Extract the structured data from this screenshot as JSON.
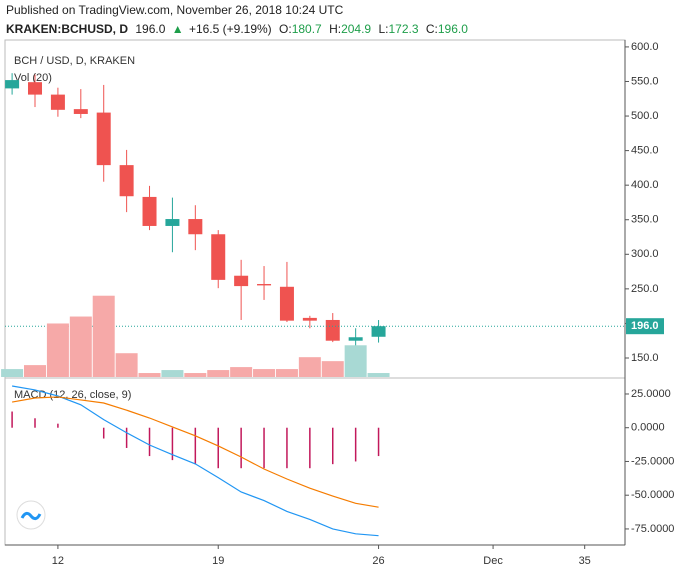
{
  "header": {
    "published": "Published on TradingView.com, November 26, 2018 10:24 UTC",
    "symbol": "KRAKEN:BCHUSD, D",
    "price": "196.0",
    "arrow": "▲",
    "change": "+16.5 (+9.19%)",
    "o_label": "O:",
    "o": "180.7",
    "h_label": "H:",
    "h": "204.9",
    "l_label": "L:",
    "l": "172.3",
    "c_label": "C:",
    "c": "196.0"
  },
  "chart_data": [
    {
      "type": "candlestick",
      "title": "BCH / USD, D, KRAKEN",
      "x": [
        10,
        11,
        12,
        13,
        14,
        15,
        16,
        17,
        18,
        19,
        20,
        21,
        22,
        23,
        24,
        25,
        26
      ],
      "open": [
        540,
        549,
        531,
        510,
        505,
        429,
        383,
        341,
        351,
        329,
        269,
        257,
        253,
        208,
        205,
        175,
        180.7
      ],
      "high": [
        562,
        560,
        541,
        539,
        545,
        451,
        399,
        382,
        371,
        335,
        292,
        283,
        289,
        211,
        215,
        193,
        204.9
      ],
      "low": [
        531,
        513,
        499,
        497,
        405,
        361,
        335,
        303,
        306,
        251,
        205,
        234,
        202,
        193,
        173,
        150,
        172.3
      ],
      "close": [
        552,
        531,
        509,
        503,
        429,
        384,
        341,
        351,
        329,
        263,
        254,
        255,
        204,
        204,
        175,
        180,
        196.0
      ],
      "up_color": "#26a69a",
      "down_color": "#ef5350",
      "ylim": [
        122.5,
        610
      ],
      "yticks": [
        {
          "value": 150,
          "label": "150.0"
        },
        {
          "value": 200,
          "label": "200.0"
        },
        {
          "value": 250,
          "label": "250.0"
        },
        {
          "value": 300,
          "label": "300.0"
        },
        {
          "value": 350,
          "label": "350.0"
        },
        {
          "value": 400,
          "label": "400.0"
        },
        {
          "value": 450,
          "label": "450.0"
        },
        {
          "value": 500,
          "label": "500.0"
        },
        {
          "value": 550,
          "label": "550.0"
        },
        {
          "value": 600,
          "label": "600.0"
        }
      ],
      "last_price": {
        "value": 196,
        "label": "196.0"
      },
      "xlim": [
        9.69,
        36.76
      ]
    },
    {
      "type": "volume",
      "title": "Vol (20)",
      "x": [
        10,
        11,
        12,
        13,
        14,
        15,
        16,
        17,
        18,
        19,
        20,
        21,
        22,
        23,
        24,
        25,
        26
      ],
      "values": [
        8,
        12,
        54,
        61,
        82,
        24,
        4,
        7,
        4,
        7,
        10,
        8,
        8,
        20,
        16,
        32,
        4
      ],
      "up_color": "#a8d9d4",
      "down_color": "#f6a9a8",
      "ylim": [
        0,
        340
      ],
      "xlim": [
        9.69,
        36.76
      ]
    },
    {
      "type": "macd",
      "title": "MACD (12, 26, close, 9)",
      "x": [
        10,
        11,
        12,
        13,
        14,
        15,
        16,
        17,
        18,
        19,
        20,
        21,
        22,
        23,
        24,
        25,
        26
      ],
      "series": [
        {
          "color": "#2196f3",
          "values": [
            30.9,
            28,
            23.5,
            17,
            6,
            -3.7,
            -12.8,
            -20,
            -26.8,
            -37,
            -47.6,
            -54,
            -62,
            -68,
            -75,
            -78.6,
            -80
          ]
        },
        {
          "color": "#f57c00",
          "values": [
            19,
            22,
            22.8,
            20.6,
            18.3,
            13,
            7.2,
            0.6,
            -6,
            -13.5,
            -21.7,
            -30.6,
            -38,
            -44.8,
            -50.6,
            -56,
            -58.9
          ]
        }
      ],
      "histogram": {
        "color": "#c2185b",
        "values": [
          12,
          7,
          3,
          0,
          -8,
          -15,
          -21,
          -24,
          -27,
          -30,
          -30,
          -30,
          -30,
          -30,
          -27,
          -25,
          -21
        ]
      },
      "ylim": [
        -86.9,
        36.1
      ],
      "yticks": [
        {
          "value": 25,
          "label": "25.0000"
        },
        {
          "value": 0,
          "label": "0.0000"
        },
        {
          "value": -25,
          "label": "-25.0000"
        },
        {
          "value": -50,
          "label": "-50.0000"
        },
        {
          "value": -75,
          "label": "-75.0000"
        }
      ],
      "xlim": [
        9.69,
        36.76
      ],
      "xticks": [
        12,
        19,
        26,
        {
          "value": 31,
          "label": "Dec"
        },
        35
      ]
    }
  ]
}
